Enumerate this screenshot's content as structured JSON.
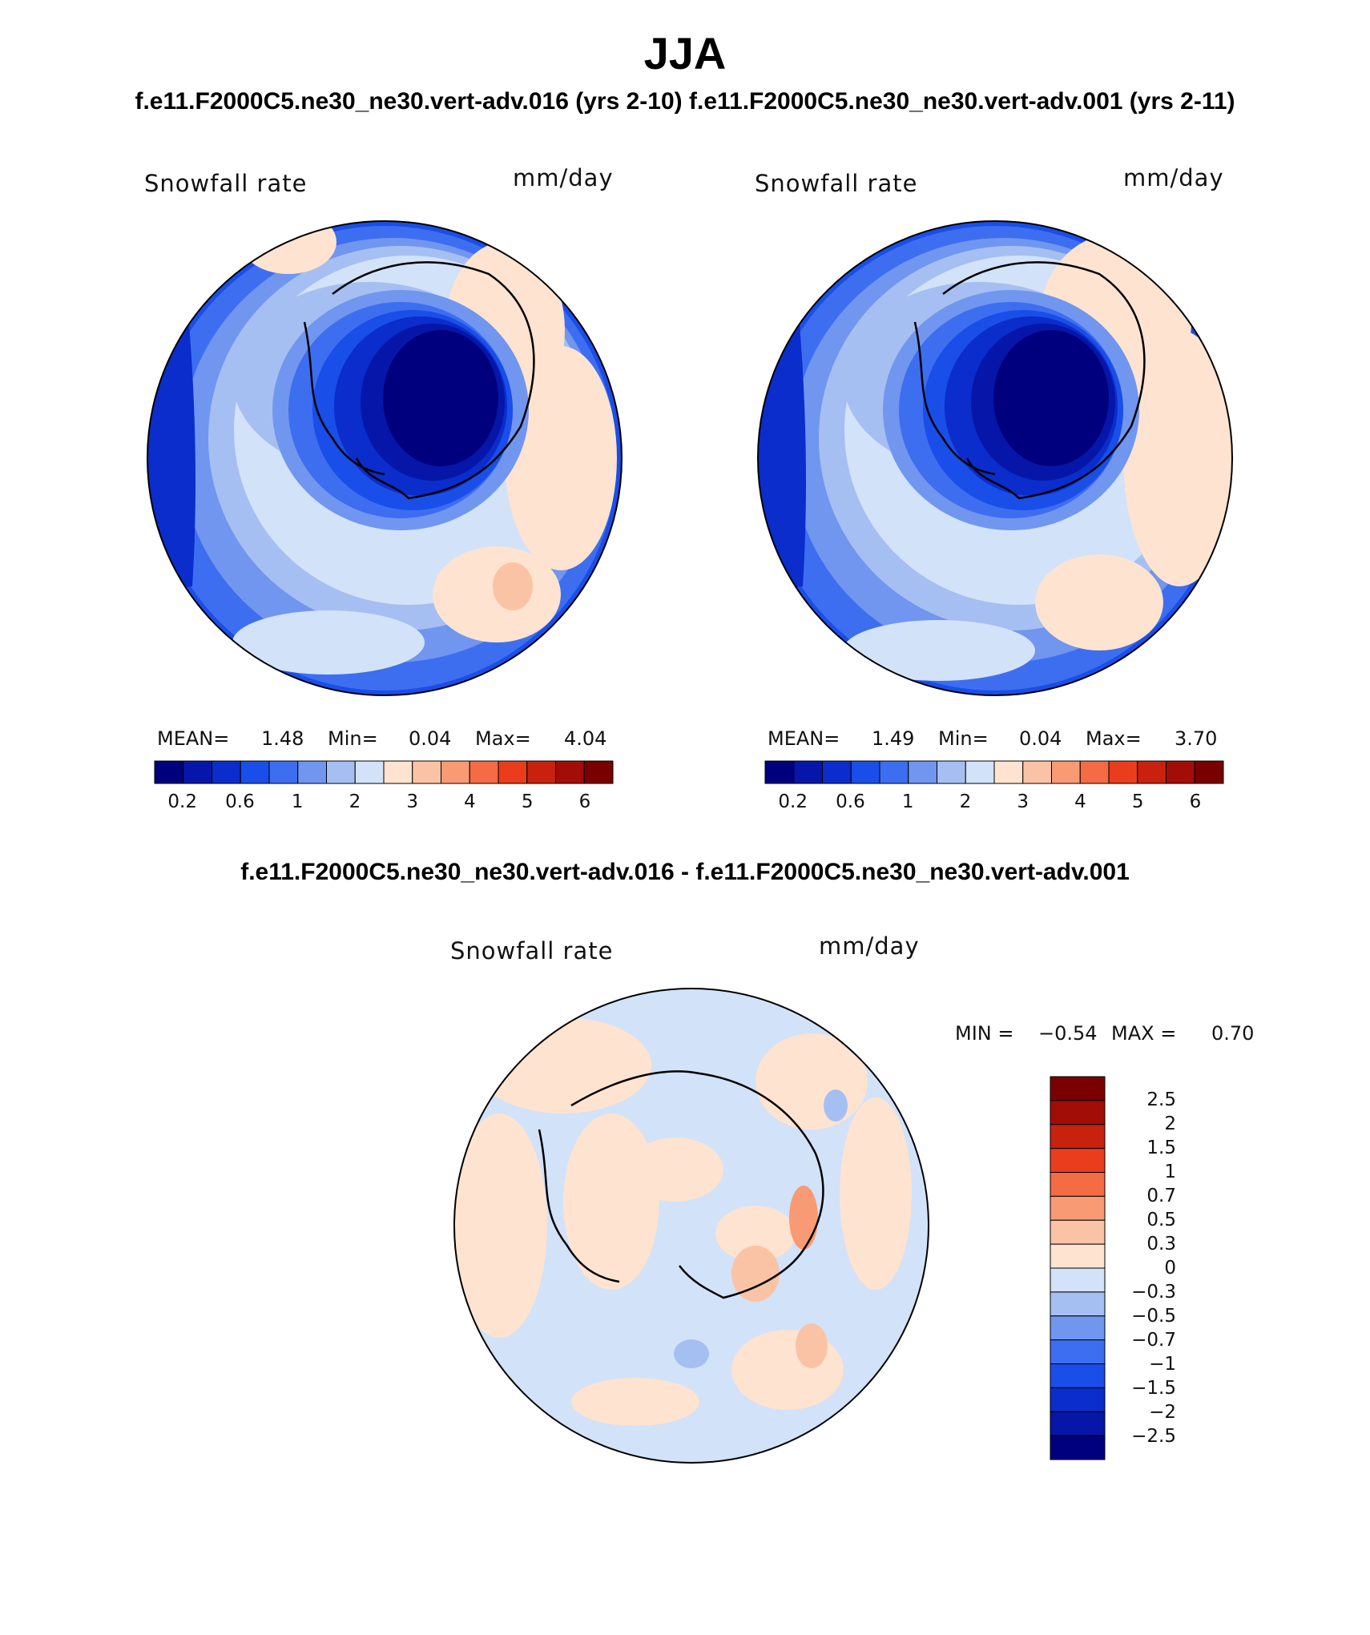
{
  "title": "JJA",
  "subtitle": "f.e11.F2000C5.ne30_ne30.vert-adv.016 (yrs 2-10) f.e11.F2000C5.ne30_ne30.vert-adv.001 (yrs 2-11)",
  "diff_title": "f.e11.F2000C5.ne30_ne30.vert-adv.016 - f.e11.F2000C5.ne30_ne30.vert-adv.001",
  "colors": {
    "abs_palette": [
      "#00007f",
      "#0616a8",
      "#0a2dcc",
      "#1a4ee8",
      "#3d6ef0",
      "#7196ef",
      "#a6bff2",
      "#d2e2f8",
      "#fde3d0",
      "#fbc3a5",
      "#f89a74",
      "#f46b44",
      "#e93d1d",
      "#c8220f",
      "#a30d07",
      "#7a0000"
    ],
    "diff_palette": [
      "#00007f",
      "#0616a8",
      "#0a2dcc",
      "#1a4ee8",
      "#3d6ef0",
      "#7196ef",
      "#a6bff2",
      "#d2e2f8",
      "#fde3d0",
      "#fbc3a5",
      "#f89a74",
      "#f46b44",
      "#e93d1d",
      "#c8220f",
      "#a30d07",
      "#7a0000"
    ],
    "land_outline": "#000000"
  },
  "chart_data": [
    {
      "type": "heatmap",
      "projection": "south polar stereographic",
      "title": "Snowfall rate",
      "units": "mm/day",
      "stats": {
        "mean_label": "MEAN=",
        "mean": "1.48",
        "min_label": "Min=",
        "min": "0.04",
        "max_label": "Max=",
        "max": "4.04"
      },
      "colorbar": {
        "orientation": "horizontal",
        "tick_labels": [
          "0.2",
          "0.6",
          "1",
          "2",
          "3",
          "4",
          "5",
          "6"
        ],
        "n_colors": 16
      }
    },
    {
      "type": "heatmap",
      "projection": "south polar stereographic",
      "title": "Snowfall rate",
      "units": "mm/day",
      "stats": {
        "mean_label": "MEAN=",
        "mean": "1.49",
        "min_label": "Min=",
        "min": "0.04",
        "max_label": "Max=",
        "max": "3.70"
      },
      "colorbar": {
        "orientation": "horizontal",
        "tick_labels": [
          "0.2",
          "0.6",
          "1",
          "2",
          "3",
          "4",
          "5",
          "6"
        ],
        "n_colors": 16
      }
    },
    {
      "type": "heatmap",
      "projection": "south polar stereographic",
      "title": "Snowfall rate",
      "units": "mm/day",
      "stats": {
        "min_label": "MIN =",
        "min": "−0.54",
        "max_label": "MAX =",
        "max": "0.70"
      },
      "colorbar": {
        "orientation": "vertical",
        "tick_labels": [
          "2.5",
          "2",
          "1.5",
          "1",
          "0.7",
          "0.5",
          "0.3",
          "0",
          "−0.3",
          "−0.5",
          "−0.7",
          "−1",
          "−1.5",
          "−2",
          "−2.5"
        ],
        "n_colors": 16
      }
    }
  ]
}
